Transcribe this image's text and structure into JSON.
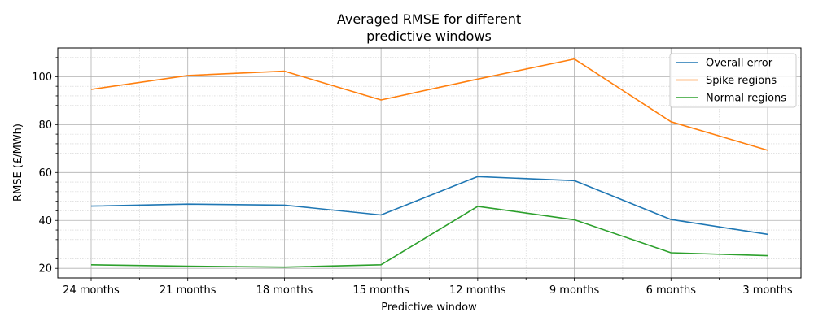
{
  "chart_data": {
    "type": "line",
    "title_lines": [
      "Averaged RMSE for different",
      "predictive windows"
    ],
    "xlabel": "Predictive window",
    "ylabel": "RMSE (£/MWh)",
    "categories": [
      "24 months",
      "21 months",
      "18 months",
      "15 months",
      "12 months",
      "9 months",
      "6 months",
      "3 months"
    ],
    "ylim": [
      16,
      112
    ],
    "yticks": [
      20,
      40,
      60,
      80,
      100
    ],
    "grid": true,
    "minor_grid": true,
    "legend_position": "top-right",
    "series": [
      {
        "name": "Overall error",
        "color": "#1f77b4",
        "values": [
          46.0,
          46.8,
          46.4,
          42.3,
          58.3,
          56.6,
          40.4,
          34.2
        ]
      },
      {
        "name": "Spike regions",
        "color": "#ff7f0e",
        "values": [
          94.7,
          100.5,
          102.3,
          90.3,
          99.0,
          107.4,
          81.2,
          69.3
        ]
      },
      {
        "name": "Normal regions",
        "color": "#2ca02c",
        "values": [
          21.5,
          20.9,
          20.5,
          21.5,
          45.9,
          40.3,
          26.5,
          25.3
        ]
      }
    ]
  }
}
